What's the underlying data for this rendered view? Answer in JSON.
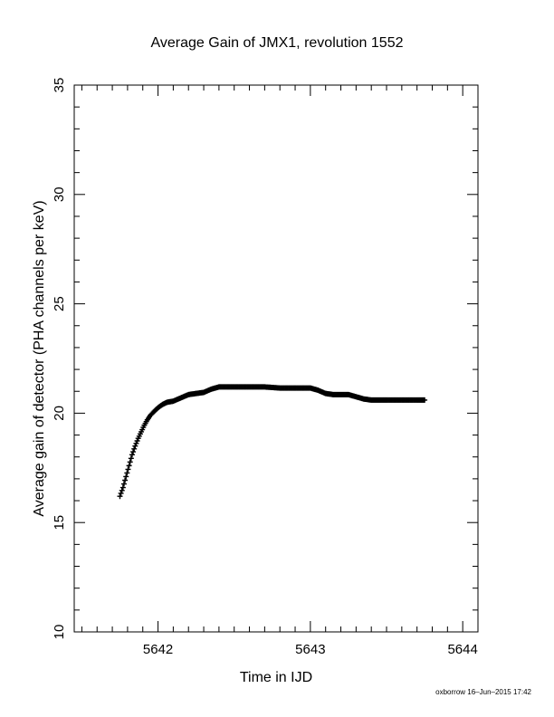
{
  "chart_data": {
    "type": "scatter",
    "title": "Average Gain of JMX1, revolution 1552",
    "xlabel": "Time in IJD",
    "ylabel": "Average gain of detector (PHA channels per keV)",
    "xlim": [
      5641.45,
      5644.1
    ],
    "ylim": [
      10,
      35
    ],
    "xticks": [
      5642,
      5643,
      5644
    ],
    "yticks": [
      10,
      15,
      20,
      25,
      30,
      35
    ],
    "marker": "plus",
    "grid": false,
    "color": "#000000",
    "series": [
      {
        "x": [
          5641.75,
          5641.77,
          5641.79,
          5641.81,
          5641.83,
          5641.85,
          5641.87,
          5641.89,
          5641.91,
          5641.93,
          5641.95,
          5641.97,
          5642.0,
          5642.03,
          5642.06,
          5642.1,
          5642.15,
          5642.2,
          5642.25,
          5642.3,
          5642.35,
          5642.4,
          5642.5,
          5642.6,
          5642.7,
          5642.8,
          5642.9,
          5643.0,
          5643.05,
          5643.1,
          5643.15,
          5643.2,
          5643.25,
          5643.3,
          5643.35,
          5643.4,
          5643.45,
          5643.5,
          5643.6,
          5643.7,
          5643.75
        ],
        "y": [
          16.2,
          16.6,
          17.1,
          17.6,
          18.1,
          18.5,
          18.85,
          19.15,
          19.45,
          19.7,
          19.9,
          20.05,
          20.25,
          20.4,
          20.5,
          20.55,
          20.7,
          20.85,
          20.9,
          20.95,
          21.1,
          21.2,
          21.2,
          21.2,
          21.2,
          21.15,
          21.15,
          21.15,
          21.05,
          20.9,
          20.85,
          20.85,
          20.85,
          20.75,
          20.65,
          20.6,
          20.6,
          20.6,
          20.6,
          20.6,
          20.6
        ]
      }
    ]
  },
  "footer": {
    "credit": "oxborrow 16–Jun–2015 17:42"
  }
}
